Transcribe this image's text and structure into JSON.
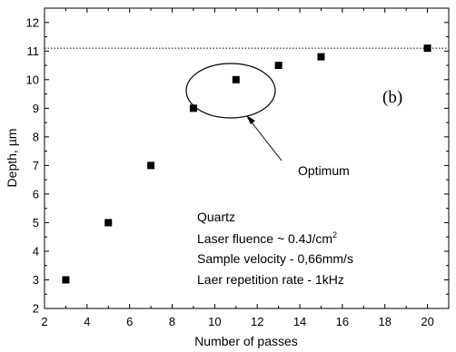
{
  "chart_data": {
    "type": "scatter",
    "xlabel": "Number of passes",
    "ylabel": "Depth, µm",
    "xlim": [
      2,
      21
    ],
    "ylim": [
      2,
      12.5
    ],
    "xticks": [
      2,
      4,
      6,
      8,
      10,
      12,
      14,
      16,
      18,
      20
    ],
    "yticks": [
      2,
      3,
      4,
      5,
      6,
      7,
      8,
      9,
      10,
      11,
      12
    ],
    "grid": false,
    "series": [
      {
        "marker": "square",
        "color": "#000000",
        "points": [
          {
            "x": 3,
            "y": 3.0
          },
          {
            "x": 5,
            "y": 5.0
          },
          {
            "x": 7,
            "y": 7.0
          },
          {
            "x": 9,
            "y": 9.0
          },
          {
            "x": 11,
            "y": 10.0
          },
          {
            "x": 13,
            "y": 10.5
          },
          {
            "x": 15,
            "y": 10.8
          },
          {
            "x": 20,
            "y": 11.1
          }
        ]
      }
    ],
    "reference_line": {
      "y": 11.1,
      "style": "dotted"
    },
    "panel_label": "(b)",
    "callout": {
      "text": "Optimum",
      "encircled_x": [
        9,
        11
      ]
    },
    "annotations": [
      "Quartz",
      "Laser fluence ~ 0.4J/cm",
      "Sample velocity - 0,66mm/s",
      "Laer repetition rate - 1kHz"
    ],
    "fluence_superscript": "2"
  }
}
